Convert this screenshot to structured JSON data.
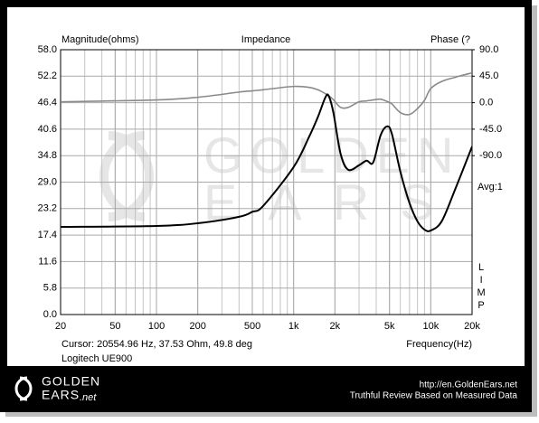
{
  "chart_data": {
    "type": "line",
    "title": "Impedance",
    "y_label": "Magnitude(ohms)",
    "y2_label": "Phase (?",
    "x_label": "Frequency(Hz)",
    "cursor": "Cursor: 20554.96 Hz, 37.53 Ohm, 49.8 deg",
    "subtitle": "Logitech UE900",
    "avg_label": "Avg:1",
    "limp_label": "LIMP",
    "watermark": [
      "GOLDEN",
      "EARS"
    ],
    "x_log": true,
    "grid": true,
    "xlim": [
      20,
      20000
    ],
    "xticks": [
      20,
      50,
      100,
      200,
      500,
      {
        "value": 1000,
        "label": "1k"
      },
      {
        "value": 2000,
        "label": "2k"
      },
      {
        "value": 5000,
        "label": "5k"
      },
      {
        "value": 10000,
        "label": "10k"
      },
      {
        "value": 20000,
        "label": "20k"
      }
    ],
    "ylim": [
      0,
      58
    ],
    "yticks": [
      {
        "value": 0,
        "label": "0.0"
      },
      5.8,
      11.6,
      17.4,
      23.2,
      {
        "value": 29,
        "label": "29.0"
      },
      34.8,
      40.6,
      46.4,
      52.2,
      {
        "value": 58,
        "label": "58.0"
      }
    ],
    "y2lim": [
      -360,
      90
    ],
    "y2ticks": [
      {
        "value": 90,
        "label": "90.0"
      },
      {
        "value": 45,
        "label": "45.0"
      },
      {
        "value": 0,
        "label": "0.0"
      },
      {
        "value": -45,
        "label": "-45.0"
      },
      {
        "value": -90,
        "label": "-90.0"
      }
    ],
    "x": [
      20,
      100,
      200,
      400,
      500,
      600,
      1000,
      1300,
      1500,
      1700,
      1800,
      1950,
      2200,
      2500,
      3000,
      3400,
      3800,
      4300,
      4800,
      5200,
      6000,
      7000,
      8000,
      9000,
      10000,
      12000,
      15000,
      20000
    ],
    "series": [
      {
        "color": "#000000",
        "values": [
          19.2,
          19.4,
          20.0,
          21.4,
          22.5,
          23.8,
          32.3,
          39.0,
          43.2,
          47.5,
          47.9,
          44.2,
          35.2,
          31.7,
          32.7,
          33.7,
          33.3,
          39.2,
          41.2,
          39.6,
          31.3,
          24.4,
          20.4,
          18.6,
          18.4,
          20.4,
          27.3,
          36.8
        ]
      },
      {
        "color": "#8a8a8a",
        "axis": "y2",
        "values": [
          1.5,
          4.6,
          9.2,
          18,
          20,
          22,
          27.6,
          26,
          22,
          15.4,
          12,
          5,
          -8,
          -8,
          1.5,
          3,
          4.6,
          6,
          2,
          -2,
          -16.9,
          -20,
          -10,
          4,
          24,
          36,
          43,
          50.7
        ]
      }
    ]
  },
  "footer": {
    "logo_top": "GOLDEN",
    "logo_bottom": "EARS",
    "logo_suffix": ".net",
    "url": "http://en.GoldenEars.net",
    "tagline": "Truthful Review Based on Measured Data"
  }
}
